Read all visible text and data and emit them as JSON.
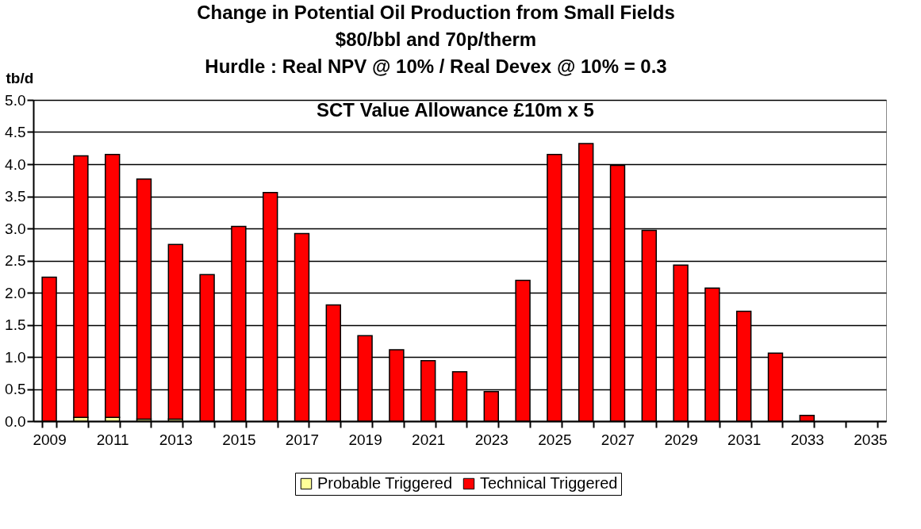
{
  "chart_data": {
    "type": "bar",
    "stacked": true,
    "title": [
      "Change in Potential Oil Production from Small Fields",
      "$80/bbl and 70p/therm",
      "Hurdle : Real NPV @ 10% / Real Devex @ 10% = 0.3"
    ],
    "subtitle": "SCT Value Allowance £10m x 5",
    "ylabel": "tb/d",
    "categories": [
      "2009",
      null,
      "2011",
      null,
      "2013",
      null,
      "2015",
      null,
      "2017",
      null,
      "2019",
      null,
      "2021",
      null,
      "2023",
      null,
      "2025",
      null,
      "2027",
      null,
      "2029",
      null,
      "2031",
      null,
      "2033",
      null,
      "2035"
    ],
    "series": [
      {
        "name": "Probable Triggered",
        "color": "#ffff99",
        "values": [
          0,
          0.06,
          0.06,
          0.03,
          0.03,
          null,
          null,
          null,
          0,
          0,
          0,
          0,
          0,
          0,
          0,
          0,
          0,
          0,
          0,
          0,
          0,
          0,
          0,
          0,
          0,
          0,
          0
        ]
      },
      {
        "name": "Technical Triggered",
        "color": "#ff0000",
        "values": [
          2.24,
          4.07,
          4.09,
          3.74,
          2.72,
          2.28,
          3.03,
          3.56,
          2.92,
          1.81,
          1.33,
          1.11,
          0.94,
          0.77,
          0.46,
          2.19,
          4.15,
          4.32,
          3.98,
          2.97,
          2.43,
          2.07,
          1.71,
          1.06,
          0.09,
          0,
          0
        ]
      }
    ],
    "ylim": [
      0,
      5
    ],
    "yticks": [
      {
        "value": 0,
        "label": "0.0"
      },
      {
        "value": 0.5,
        "label": "0.5"
      },
      {
        "value": 1,
        "label": "1.0"
      },
      {
        "value": 1.5,
        "label": "1.5"
      },
      {
        "value": 2,
        "label": "2.0"
      },
      {
        "value": 2.5,
        "label": "2.5"
      },
      {
        "value": 3,
        "label": "3.0"
      },
      {
        "value": 3.5,
        "label": "3.5"
      },
      {
        "value": 4,
        "label": "4.0"
      },
      {
        "value": 4.5,
        "label": "4.5"
      },
      {
        "value": 5,
        "label": "5.0"
      }
    ],
    "grid": "y",
    "legend": "bottom"
  }
}
